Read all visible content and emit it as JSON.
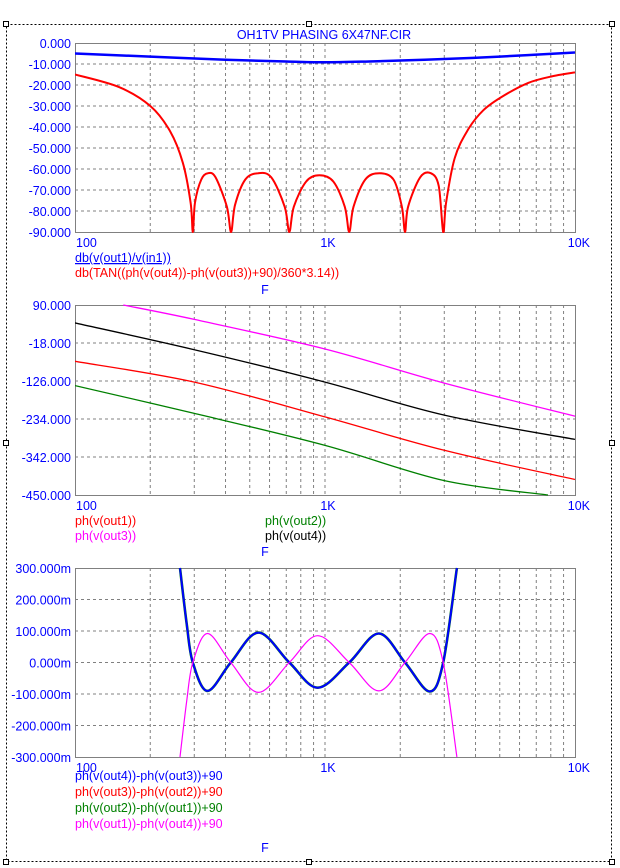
{
  "title": "OH1TV PHASING 6X47NF.CIR",
  "colors": {
    "axis_text": "#0000ff",
    "grid": "#808080",
    "blue": "#0000ff",
    "red": "#ff0000",
    "green": "#008000",
    "magenta": "#ff00ff",
    "black": "#000000"
  },
  "chart_data": [
    {
      "type": "line",
      "xscale": "log",
      "xlim": [
        100,
        10000
      ],
      "ylim": [
        -90,
        0
      ],
      "xlabel": "F",
      "x_tick_labels": [
        "100",
        "1K",
        "10K"
      ],
      "y_tick_labels": [
        "0.000",
        "-10.000",
        "-20.000",
        "-30.000",
        "-40.000",
        "-50.000",
        "-60.000",
        "-70.000",
        "-80.000",
        "-90.000"
      ],
      "y_ticks": [
        0,
        -10,
        -20,
        -30,
        -40,
        -50,
        -60,
        -70,
        -80,
        -90
      ],
      "grid": true,
      "series": [
        {
          "name": "db(v(out1)/v(in1))",
          "color": "blue",
          "width": 2.5,
          "underline": true,
          "x": [
            100,
            200,
            400,
            700,
            1000,
            1500,
            2500,
            5000,
            10000
          ],
          "y": [
            -5,
            -6.5,
            -8,
            -8.8,
            -9.2,
            -8.8,
            -8,
            -6.5,
            -4.5
          ]
        },
        {
          "name": "db(TAN((ph(v(out4))-ph(v(out3))+90)/360*3.14))",
          "color": "red",
          "width": 2,
          "x": [
            100,
            150,
            200,
            240,
            270,
            290,
            296,
            302,
            320,
            340,
            365,
            405,
            421,
            437,
            480,
            540,
            610,
            690,
            720,
            750,
            840,
            950,
            1080,
            1200,
            1250,
            1300,
            1450,
            1650,
            1880,
            2030,
            2090,
            2150,
            2400,
            2650,
            2850,
            2970,
            3050,
            3300,
            3700,
            4300,
            5200,
            6500,
            8000,
            10000
          ],
          "y": [
            -15,
            -21,
            -30,
            -42,
            -57,
            -76,
            -90,
            -76,
            -65,
            -62,
            -64,
            -78,
            -90,
            -77,
            -65,
            -62,
            -64,
            -78,
            -90,
            -78,
            -66,
            -63,
            -66,
            -78,
            -90,
            -78,
            -65,
            -62,
            -65,
            -78,
            -90,
            -78,
            -64,
            -62,
            -68,
            -90,
            -76,
            -55,
            -42,
            -32,
            -25,
            -19,
            -16,
            -14
          ]
        }
      ]
    },
    {
      "type": "line",
      "xscale": "log",
      "xlim": [
        100,
        10000
      ],
      "ylim": [
        -450,
        90
      ],
      "xlabel": "F",
      "x_tick_labels": [
        "100",
        "1K",
        "10K"
      ],
      "y_tick_labels": [
        "90.000",
        "-18.000",
        "-126.000",
        "-234.000",
        "-342.000",
        "-450.000"
      ],
      "y_ticks": [
        90,
        -18,
        -126,
        -234,
        -342,
        -450
      ],
      "grid": true,
      "series": [
        {
          "name": "ph(v(out1))",
          "color": "red",
          "width": 1.3,
          "x": [
            100,
            300,
            1000,
            3000,
            10000
          ],
          "y": [
            -70,
            -129,
            -228,
            -323,
            -406
          ]
        },
        {
          "name": "ph(v(out2))",
          "color": "green",
          "width": 1.3,
          "x": [
            100,
            300,
            1000,
            3000,
            7800
          ],
          "y": [
            -139,
            -218,
            -309,
            -409,
            -450
          ]
        },
        {
          "name": "ph(v(out3))",
          "color": "magenta",
          "width": 1.3,
          "x": [
            156,
            300,
            1000,
            3000,
            10000
          ],
          "y": [
            90,
            49,
            -35,
            -132,
            -226
          ]
        },
        {
          "name": "ph(v(out4))",
          "color": "black",
          "width": 1.3,
          "x": [
            100,
            300,
            1000,
            3000,
            10000
          ],
          "y": [
            39,
            -37,
            -129,
            -223,
            -292
          ]
        }
      ]
    },
    {
      "type": "line",
      "xscale": "log",
      "xlim": [
        100,
        10000
      ],
      "ylim": [
        -0.3,
        0.3
      ],
      "xlabel": "F",
      "x_tick_labels": [
        "100",
        "1K",
        "10K"
      ],
      "y_tick_labels": [
        "300.000m",
        "200.000m",
        "100.000m",
        "0.000m",
        "-100.000m",
        "-200.000m",
        "-300.000m"
      ],
      "y_ticks": [
        0.3,
        0.2,
        0.1,
        0,
        -0.1,
        -0.2,
        -0.3
      ],
      "grid": true,
      "series": [
        {
          "name": "ph(v(out4))-ph(v(out3))+90",
          "color": "blue",
          "width": 2,
          "x": [
            263,
            280,
            296,
            339,
            420,
            542,
            720,
            935,
            1250,
            1640,
            2090,
            2620,
            2970,
            3370
          ],
          "y": [
            0.3,
            0.12,
            0,
            -0.09,
            0,
            0.095,
            0,
            -0.08,
            0,
            0.092,
            0,
            -0.092,
            0,
            0.3
          ]
        },
        {
          "name": "ph(v(out3))-ph(v(out2))+90",
          "color": "red",
          "width": 1.2,
          "x": [
            263,
            280,
            296,
            339,
            420,
            542,
            720,
            935,
            1250,
            1640,
            2090,
            2620,
            2970,
            3370
          ],
          "y": [
            0.3,
            0.12,
            0,
            -0.09,
            0,
            0.095,
            0,
            -0.08,
            0,
            0.092,
            0,
            -0.092,
            0,
            0.3
          ]
        },
        {
          "name": "ph(v(out2))-ph(v(out1))+90",
          "color": "green",
          "width": 2.6,
          "x": [
            263,
            280,
            296,
            339,
            420,
            542,
            720,
            935,
            1250,
            1640,
            2090,
            2620,
            2970,
            3370
          ],
          "y": [
            0.3,
            0.12,
            0,
            -0.09,
            0,
            0.095,
            0,
            -0.08,
            0,
            0.092,
            0,
            -0.092,
            0,
            0.3
          ]
        },
        {
          "name": "ph(v(out1))-ph(v(out4))+90",
          "color": "magenta",
          "width": 1.2,
          "x": [
            263,
            280,
            296,
            339,
            420,
            542,
            720,
            935,
            1250,
            1640,
            2090,
            2620,
            2970,
            3370
          ],
          "y": [
            -0.3,
            -0.12,
            0,
            0.092,
            0,
            -0.095,
            0,
            0.085,
            0,
            -0.09,
            0,
            0.092,
            0,
            -0.3
          ]
        }
      ]
    }
  ]
}
